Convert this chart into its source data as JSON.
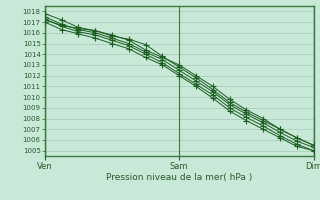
{
  "title": "",
  "xlabel": "Pression niveau de la mer( hPa )",
  "ylabel": "",
  "ylim": [
    1004.5,
    1018.5
  ],
  "xlim": [
    0,
    48
  ],
  "yticks": [
    1005,
    1006,
    1007,
    1008,
    1009,
    1010,
    1011,
    1012,
    1013,
    1014,
    1015,
    1016,
    1017,
    1018
  ],
  "xtick_positions": [
    0,
    24,
    48
  ],
  "xtick_labels": [
    "Ven",
    "Sam",
    "Dim"
  ],
  "background_color": "#c8e8d8",
  "grid_color": "#a8c8b8",
  "line_color": "#1a5e20",
  "border_color": "#3a7a3a",
  "figsize": [
    3.2,
    2.0
  ],
  "dpi": 100,
  "lines": [
    {
      "x": [
        0,
        3,
        6,
        9,
        12,
        15,
        18,
        21,
        24,
        27,
        30,
        33,
        36,
        39,
        42,
        45,
        48
      ],
      "y": [
        1017.8,
        1017.2,
        1016.5,
        1016.2,
        1015.8,
        1015.3,
        1014.4,
        1013.7,
        1013.0,
        1012.0,
        1011.0,
        1009.8,
        1008.8,
        1008.0,
        1007.0,
        1006.2,
        1005.5
      ]
    },
    {
      "x": [
        0,
        3,
        6,
        9,
        12,
        15,
        18,
        21,
        24,
        27,
        30,
        33,
        36,
        39,
        42,
        45,
        48
      ],
      "y": [
        1017.5,
        1016.8,
        1016.3,
        1016.0,
        1015.5,
        1015.0,
        1014.2,
        1013.5,
        1012.5,
        1011.5,
        1010.5,
        1009.3,
        1008.4,
        1007.6,
        1006.7,
        1005.9,
        1005.3
      ]
    },
    {
      "x": [
        0,
        3,
        6,
        9,
        12,
        15,
        18,
        21,
        24,
        27,
        30,
        33,
        36,
        39,
        42,
        45,
        48
      ],
      "y": [
        1017.3,
        1016.6,
        1016.1,
        1015.8,
        1015.3,
        1014.8,
        1014.0,
        1013.2,
        1012.2,
        1011.2,
        1010.2,
        1009.0,
        1008.1,
        1007.3,
        1006.4,
        1005.6,
        1005.0
      ]
    },
    {
      "x": [
        0,
        3,
        6,
        9,
        12,
        15,
        18,
        21,
        24,
        27,
        30,
        33,
        36,
        39,
        42,
        45,
        48
      ],
      "y": [
        1017.0,
        1016.3,
        1015.9,
        1015.5,
        1015.0,
        1014.5,
        1013.7,
        1013.0,
        1012.0,
        1011.0,
        1009.9,
        1008.7,
        1007.8,
        1007.0,
        1006.2,
        1005.4,
        1005.0
      ]
    },
    {
      "x": [
        0,
        3,
        6,
        9,
        12,
        15,
        18,
        21,
        24,
        27,
        30,
        33,
        36,
        39,
        42,
        45,
        48
      ],
      "y": [
        1017.2,
        1016.7,
        1016.4,
        1016.2,
        1015.7,
        1015.4,
        1014.9,
        1013.8,
        1012.8,
        1011.8,
        1010.7,
        1009.5,
        1008.6,
        1007.8,
        1007.0,
        1006.2,
        1005.5
      ]
    }
  ]
}
